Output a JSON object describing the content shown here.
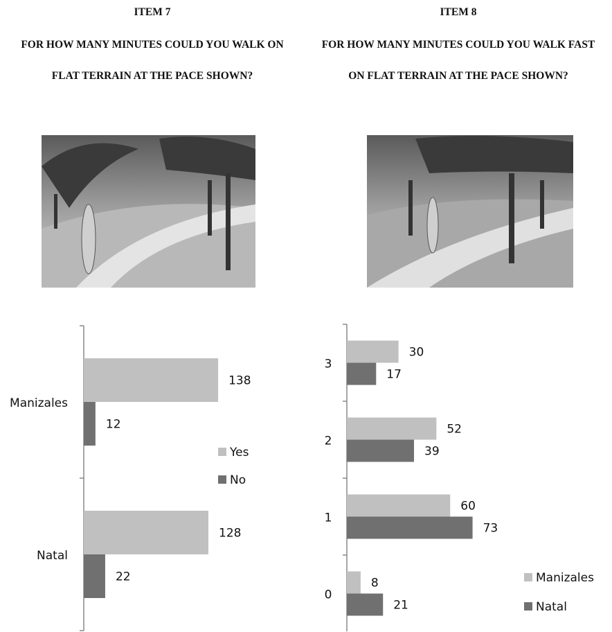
{
  "chart_data": [
    {
      "type": "bar",
      "orientation": "horizontal",
      "title": "ITEM 7",
      "subtitle": "FOR HOW MANY MINUTES COULD YOU WALK ON FLAT TERRAIN AT THE PACE SHOWN?",
      "categories": [
        "Manizales",
        "Natal"
      ],
      "series": [
        {
          "name": "Yes",
          "color": "#c0c0c0",
          "values": [
            138,
            128
          ]
        },
        {
          "name": "No",
          "color": "#707070",
          "values": [
            12,
            22
          ]
        }
      ],
      "xlim": [
        0,
        160
      ],
      "legend": "right"
    },
    {
      "type": "bar",
      "orientation": "horizontal",
      "title": "ITEM 8",
      "subtitle": "FOR HOW MANY MINUTES COULD YOU WALK FAST ON FLAT TERRAIN AT THE PACE SHOWN?",
      "categories": [
        "3",
        "2",
        "1",
        "0"
      ],
      "series": [
        {
          "name": "Manizales",
          "color": "#c0c0c0",
          "values": [
            30,
            52,
            60,
            8
          ]
        },
        {
          "name": "Natal",
          "color": "#707070",
          "values": [
            17,
            39,
            73,
            21
          ]
        }
      ],
      "xlim": [
        0,
        80
      ],
      "legend": "bottom-right"
    }
  ]
}
